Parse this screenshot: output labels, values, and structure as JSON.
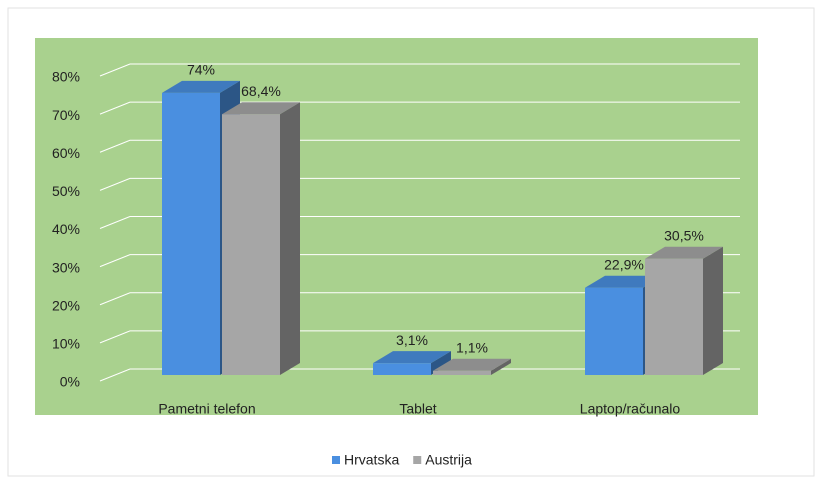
{
  "chart_data": {
    "type": "bar3d",
    "categories": [
      "Pametni telefon",
      "Tablet",
      "Laptop/računalo"
    ],
    "series": [
      {
        "name": "Hrvatska",
        "color": "#4a8fe0",
        "values": [
          74,
          3.1,
          22.9
        ],
        "value_labels": [
          "74%",
          "3,1%",
          "22,9%"
        ]
      },
      {
        "name": "Austrija",
        "color": "#a6a6a6",
        "values": [
          68.4,
          1.1,
          30.5
        ],
        "value_labels": [
          "68,4%",
          "1,1%",
          "30,5%"
        ]
      }
    ],
    "ylim": [
      0,
      80
    ],
    "yticks": [
      {
        "value": 0,
        "label": "0%"
      },
      {
        "value": 10,
        "label": "10%"
      },
      {
        "value": 20,
        "label": "20%"
      },
      {
        "value": 30,
        "label": "30%"
      },
      {
        "value": 40,
        "label": "40%"
      },
      {
        "value": 50,
        "label": "50%"
      },
      {
        "value": 60,
        "label": "60%"
      },
      {
        "value": 70,
        "label": "70%"
      },
      {
        "value": 80,
        "label": "80%"
      }
    ],
    "grid": true,
    "legend": "bottom",
    "plot_color": "#a9d18e"
  }
}
